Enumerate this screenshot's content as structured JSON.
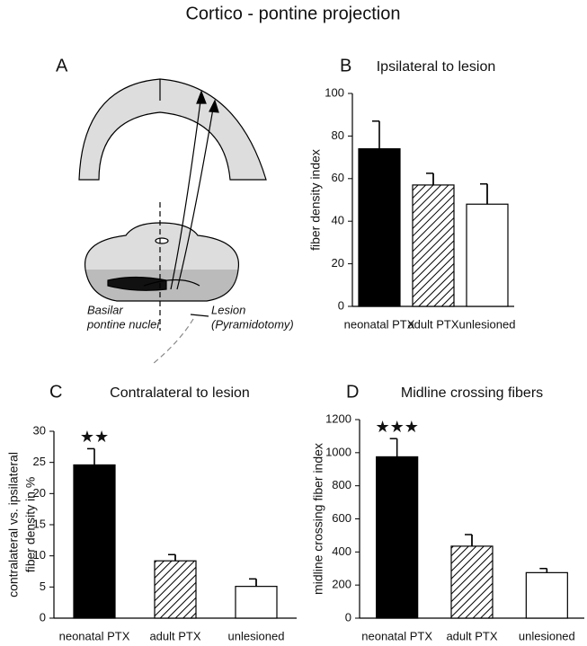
{
  "title": "Cortico - pontine projection",
  "panel_a": {
    "label": "A",
    "basilar_label": [
      "Basilar",
      "pontine nuclei"
    ],
    "lesion_label": [
      "Lesion",
      "(Pyramidotomy)"
    ]
  },
  "chart_data": [
    {
      "type": "bar",
      "label": "B",
      "title": "Ipsilateral to lesion",
      "ylabel": "fiber density index",
      "categories": [
        "neonatal PTX",
        "adult PTX",
        "unlesioned"
      ],
      "values": [
        74,
        57,
        48
      ],
      "errors": [
        13,
        5.5,
        9.5
      ],
      "bar_styles": [
        "solid",
        "hatch",
        "open"
      ],
      "ylim": [
        0,
        100
      ],
      "yticks": [
        0,
        20,
        40,
        60,
        80,
        100
      ]
    },
    {
      "type": "bar",
      "label": "C",
      "title": "Contralateral to lesion",
      "ylabel": [
        "contralateral vs. ipsilateral",
        "fiber density in %"
      ],
      "categories": [
        "neonatal PTX",
        "adult PTX",
        "unlesioned"
      ],
      "values": [
        24.6,
        9.2,
        5.1
      ],
      "errors": [
        2.6,
        1.0,
        1.2
      ],
      "value_annotations": [
        "★★",
        null,
        null
      ],
      "bar_styles": [
        "solid",
        "hatch",
        "open"
      ],
      "ylim": [
        0,
        30
      ],
      "yticks": [
        0,
        5,
        10,
        15,
        20,
        25,
        30
      ]
    },
    {
      "type": "bar",
      "label": "D",
      "title": "Midline crossing fibers",
      "ylabel": "midline crossing fiber index",
      "categories": [
        "neonatal PTX",
        "adult PTX",
        "unlesioned"
      ],
      "values": [
        975,
        435,
        275
      ],
      "errors": [
        110,
        70,
        25
      ],
      "value_annotations": [
        "★★★",
        null,
        null
      ],
      "bar_styles": [
        "solid",
        "hatch",
        "open"
      ],
      "ylim": [
        0,
        1200
      ],
      "yticks": [
        0,
        200,
        400,
        600,
        800,
        1000,
        1200
      ]
    }
  ]
}
